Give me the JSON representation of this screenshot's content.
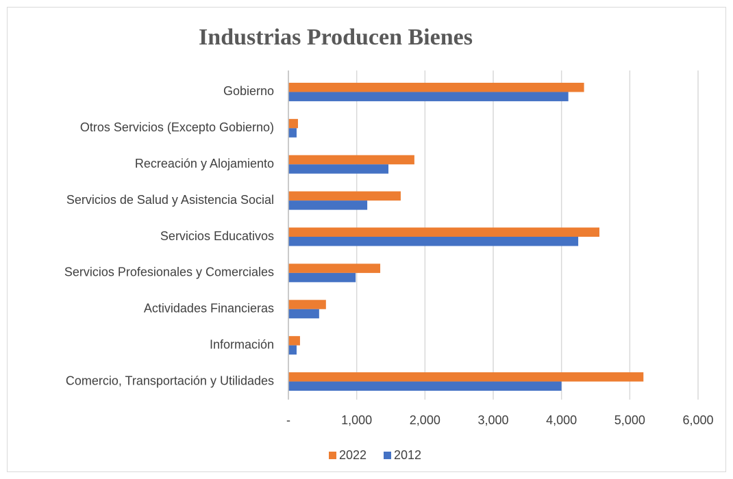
{
  "chart_data": {
    "type": "bar",
    "orientation": "horizontal",
    "title": "Industrias Producen Bienes",
    "categories": [
      "Gobierno",
      "Otros Servicios (Excepto Gobierno)",
      "Recreación y Alojamiento",
      "Servicios de Salud y Asistencia Social",
      "Servicios Educativos",
      "Servicios Profesionales y Comerciales",
      "Actividades Financieras",
      "Información ",
      "Comercio, Transportación y Utilidades"
    ],
    "series": [
      {
        "name": "2022",
        "color": "#ed7d31",
        "values": [
          4330,
          140,
          1845,
          1645,
          4555,
          1345,
          550,
          170,
          5200
        ]
      },
      {
        "name": "2012",
        "color": "#4472c4",
        "values": [
          4100,
          120,
          1465,
          1155,
          4245,
          985,
          450,
          120,
          4000
        ]
      }
    ],
    "xlim": [
      0,
      6000
    ],
    "xticks": [
      {
        "value": 0,
        "label": "-"
      },
      {
        "value": 1000,
        "label": "1,000"
      },
      {
        "value": 2000,
        "label": "2,000"
      },
      {
        "value": 3000,
        "label": "3,000"
      },
      {
        "value": 4000,
        "label": "4,000"
      },
      {
        "value": 5000,
        "label": "5,000"
      },
      {
        "value": 6000,
        "label": "6,000"
      }
    ],
    "grid": true,
    "legend": "bottom"
  }
}
